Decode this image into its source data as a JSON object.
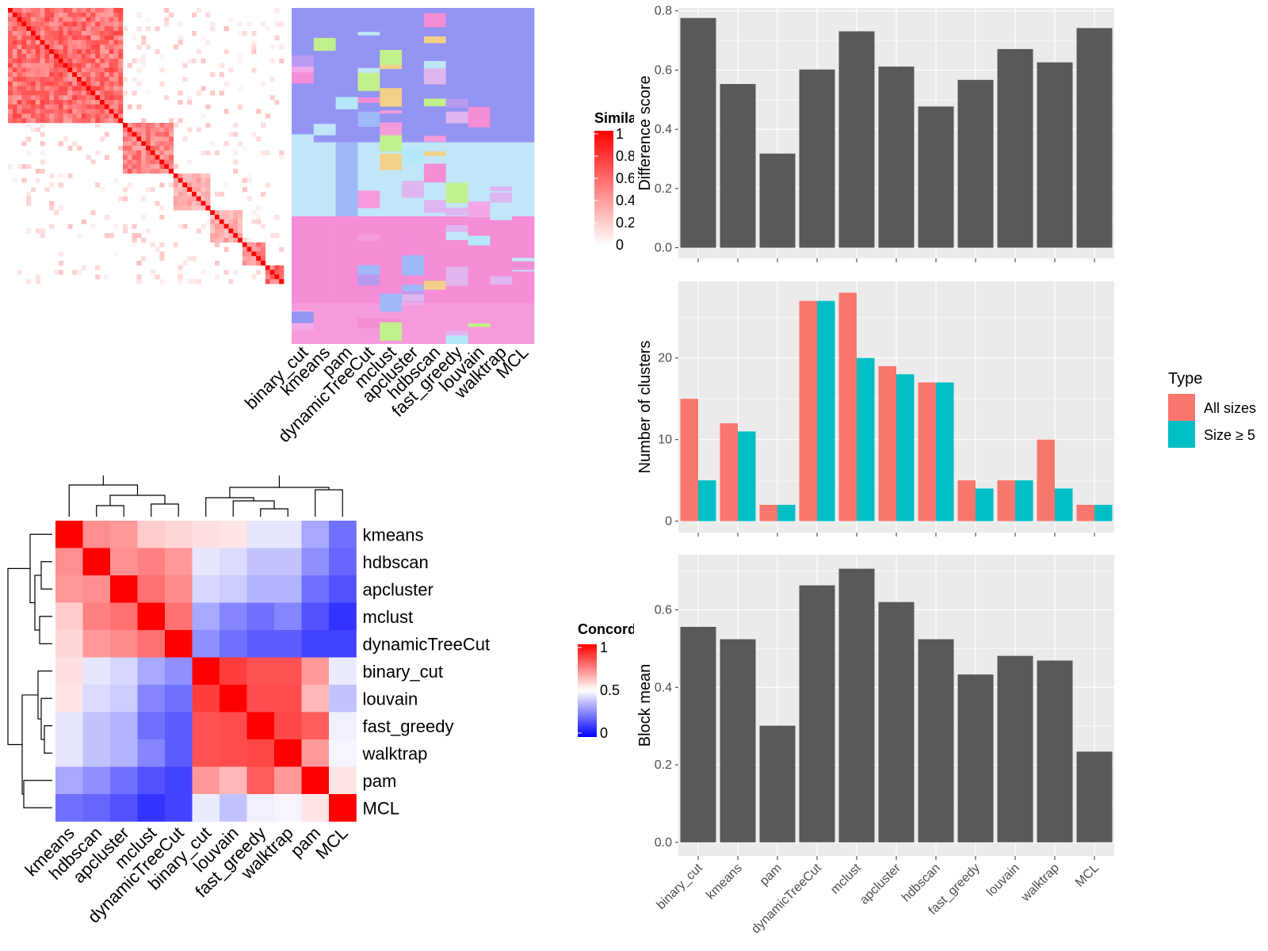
{
  "chart_data": [
    {
      "type": "heatmap",
      "panel": "similarity-matrix",
      "legend_title": "Similarity",
      "legend_ticks": [
        "1",
        "0.8",
        "0.6",
        "0.4",
        "0.2",
        "0"
      ],
      "colors": {
        "high": "#ff0000",
        "low": "#ffffff"
      },
      "column_labels": [
        "binary_cut",
        "kmeans",
        "pam",
        "dynamicTreeCut",
        "mclust",
        "apcluster",
        "hdbscan",
        "fast_greedy",
        "louvain",
        "walktrap",
        "MCL"
      ]
    },
    {
      "type": "heatmap",
      "panel": "concordance",
      "legend_title": "Concordance",
      "legend_ticks": [
        "1",
        "0.5",
        "0"
      ],
      "colors": {
        "high": "#ff0000",
        "mid": "#ffffff",
        "low": "#0000ff"
      },
      "rows": [
        "kmeans",
        "hdbscan",
        "apcluster",
        "mclust",
        "dynamicTreeCut",
        "binary_cut",
        "louvain",
        "fast_greedy",
        "walktrap",
        "pam",
        "MCL"
      ],
      "cols": [
        "kmeans",
        "hdbscan",
        "apcluster",
        "mclust",
        "dynamicTreeCut",
        "binary_cut",
        "louvain",
        "fast_greedy",
        "walktrap",
        "pam",
        "MCL"
      ],
      "values": [
        [
          1.0,
          0.72,
          0.7,
          0.6,
          0.58,
          0.56,
          0.55,
          0.45,
          0.45,
          0.33,
          0.22
        ],
        [
          0.72,
          1.0,
          0.72,
          0.75,
          0.7,
          0.45,
          0.43,
          0.38,
          0.38,
          0.28,
          0.2
        ],
        [
          0.7,
          0.72,
          1.0,
          0.78,
          0.73,
          0.42,
          0.4,
          0.35,
          0.35,
          0.22,
          0.16
        ],
        [
          0.6,
          0.75,
          0.78,
          1.0,
          0.78,
          0.33,
          0.26,
          0.22,
          0.26,
          0.16,
          0.1
        ],
        [
          0.58,
          0.7,
          0.73,
          0.78,
          1.0,
          0.28,
          0.22,
          0.18,
          0.18,
          0.13,
          0.13
        ],
        [
          0.56,
          0.45,
          0.42,
          0.33,
          0.28,
          1.0,
          0.88,
          0.84,
          0.84,
          0.7,
          0.46
        ],
        [
          0.55,
          0.43,
          0.4,
          0.26,
          0.22,
          0.88,
          1.0,
          0.85,
          0.85,
          0.64,
          0.38
        ],
        [
          0.45,
          0.38,
          0.35,
          0.22,
          0.18,
          0.84,
          0.85,
          1.0,
          0.86,
          0.82,
          0.47
        ],
        [
          0.45,
          0.38,
          0.35,
          0.26,
          0.18,
          0.84,
          0.85,
          0.86,
          1.0,
          0.7,
          0.48
        ],
        [
          0.33,
          0.28,
          0.22,
          0.16,
          0.13,
          0.7,
          0.64,
          0.82,
          0.7,
          1.0,
          0.55
        ],
        [
          0.22,
          0.2,
          0.16,
          0.1,
          0.13,
          0.46,
          0.38,
          0.47,
          0.48,
          0.55,
          1.0
        ]
      ]
    },
    {
      "type": "bar",
      "panel": "difference-score",
      "categories": [
        "binary_cut",
        "kmeans",
        "pam",
        "dynamicTreeCut",
        "mclust",
        "apcluster",
        "hdbscan",
        "fast_greedy",
        "louvain",
        "walktrap",
        "MCL"
      ],
      "values": [
        0.776,
        0.553,
        0.318,
        0.602,
        0.731,
        0.612,
        0.477,
        0.567,
        0.671,
        0.626,
        0.742
      ],
      "ylabel": "Difference score",
      "ylim": [
        -0.036,
        0.81
      ],
      "yticks": [
        "0.0",
        "0.2",
        "0.4",
        "0.6",
        "0.8"
      ],
      "ytick_values": [
        0,
        0.2,
        0.4,
        0.6,
        0.8
      ],
      "grid": true,
      "bar_color": "#595959"
    },
    {
      "type": "bar",
      "panel": "number-of-clusters",
      "categories": [
        "binary_cut",
        "kmeans",
        "pam",
        "dynamicTreeCut",
        "mclust",
        "apcluster",
        "hdbscan",
        "fast_greedy",
        "louvain",
        "walktrap",
        "MCL"
      ],
      "series": [
        {
          "name": "All sizes",
          "values": [
            15,
            12,
            2,
            27,
            28,
            19,
            17,
            5,
            5,
            10,
            2
          ],
          "color": "#f8766d"
        },
        {
          "name": "Size ≥ 5",
          "values": [
            5,
            11,
            2,
            27,
            20,
            18,
            17,
            4,
            5,
            4,
            2
          ],
          "color": "#00bfc4"
        }
      ],
      "ylabel": "Number of clusters",
      "ylim": [
        -1.4,
        29.4
      ],
      "yticks": [
        "0",
        "10",
        "20"
      ],
      "ytick_values": [
        0,
        10,
        20
      ],
      "legend_title": "Type",
      "legend_position": "right",
      "grid": true
    },
    {
      "type": "bar",
      "panel": "block-mean",
      "categories": [
        "binary_cut",
        "kmeans",
        "pam",
        "dynamicTreeCut",
        "mclust",
        "apcluster",
        "hdbscan",
        "fast_greedy",
        "louvain",
        "walktrap",
        "MCL"
      ],
      "values": [
        0.556,
        0.524,
        0.301,
        0.663,
        0.706,
        0.62,
        0.524,
        0.433,
        0.481,
        0.469,
        0.234
      ],
      "ylabel": "Block mean",
      "ylim": [
        -0.035,
        0.742
      ],
      "yticks": [
        "0.0",
        "0.2",
        "0.4",
        "0.6"
      ],
      "ytick_values": [
        0,
        0.2,
        0.4,
        0.6
      ],
      "grid": true,
      "bar_color": "#595959"
    }
  ]
}
